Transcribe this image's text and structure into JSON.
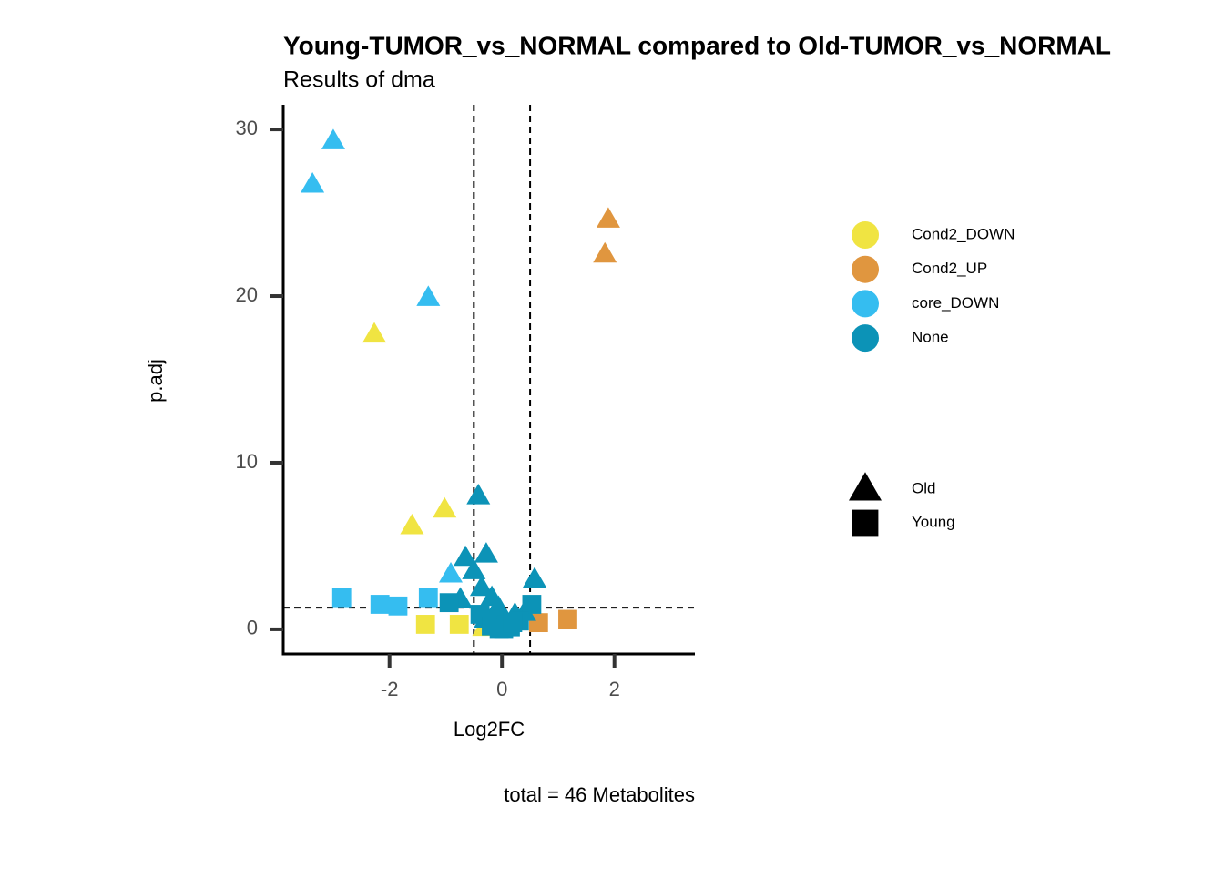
{
  "chart_data": {
    "type": "scatter",
    "title": "Young-TUMOR_vs_NORMAL compared to Old-TUMOR_vs_NORMAL",
    "subtitle": "Results of dma",
    "x_label": "Log2FC",
    "y_label": "p.adj",
    "caption": "total = 46 Metabolites",
    "xlim": [
      -3.89,
      3.43
    ],
    "ylim": [
      -1.48,
      31.48
    ],
    "xticks": [
      -2,
      0,
      2
    ],
    "yticks": [
      0,
      10,
      20,
      30
    ],
    "vlines": [
      -0.5,
      0.5
    ],
    "hline": 1.3,
    "color_legend": [
      {
        "name": "Cond2_DOWN",
        "color": "#f0e442"
      },
      {
        "name": "Cond2_UP",
        "color": "#e0963f"
      },
      {
        "name": "core_DOWN",
        "color": "#35bdf0"
      },
      {
        "name": "None",
        "color": "#0c93b7"
      }
    ],
    "shape_legend": [
      {
        "name": "Old",
        "shape": "triangle"
      },
      {
        "name": "Young",
        "shape": "square"
      }
    ],
    "series": [
      {
        "color": "#f0e442",
        "shape": "triangle",
        "x": [
          -2.27,
          -1.6,
          -1.02,
          -0.32
        ],
        "values": [
          17.7,
          6.2,
          7.2,
          0.1
        ]
      },
      {
        "color": "#f0e442",
        "shape": "square",
        "x": [
          -1.36,
          -0.76
        ],
        "values": [
          0.3,
          0.3
        ]
      },
      {
        "color": "#e0963f",
        "shape": "triangle",
        "x": [
          1.89,
          1.83
        ],
        "values": [
          24.6,
          22.5
        ]
      },
      {
        "color": "#e0963f",
        "shape": "square",
        "x": [
          1.17,
          0.65
        ],
        "values": [
          0.6,
          0.4
        ]
      },
      {
        "color": "#35bdf0",
        "shape": "triangle",
        "x": [
          -3.0,
          -3.37,
          -1.31,
          -0.91
        ],
        "values": [
          29.3,
          26.7,
          19.9,
          3.3
        ]
      },
      {
        "color": "#35bdf0",
        "shape": "square",
        "x": [
          -2.85,
          -2.17,
          -1.85,
          -1.31
        ],
        "values": [
          1.9,
          1.5,
          1.4,
          1.9
        ]
      },
      {
        "color": "#0c93b7",
        "shape": "triangle",
        "x": [
          -0.42,
          -0.65,
          -0.28,
          -0.5,
          0.58,
          -0.74,
          -0.36,
          -0.18,
          -0.06,
          0.23,
          0.4,
          -0.13,
          -0.29
        ],
        "values": [
          8.0,
          4.3,
          4.5,
          3.5,
          3.0,
          1.8,
          2.5,
          1.9,
          1.3,
          0.9,
          1.0,
          1.0,
          0.6
        ]
      },
      {
        "color": "#0c93b7",
        "shape": "square",
        "x": [
          -0.94,
          0.53,
          -0.39,
          -0.1,
          0.03,
          0.15,
          -0.19,
          0.31,
          -0.05,
          0.08,
          0.19
        ],
        "values": [
          1.6,
          1.5,
          0.9,
          0.4,
          0.05,
          0.15,
          0.2,
          0.5,
          0.05,
          0.3,
          0.4
        ]
      }
    ]
  }
}
